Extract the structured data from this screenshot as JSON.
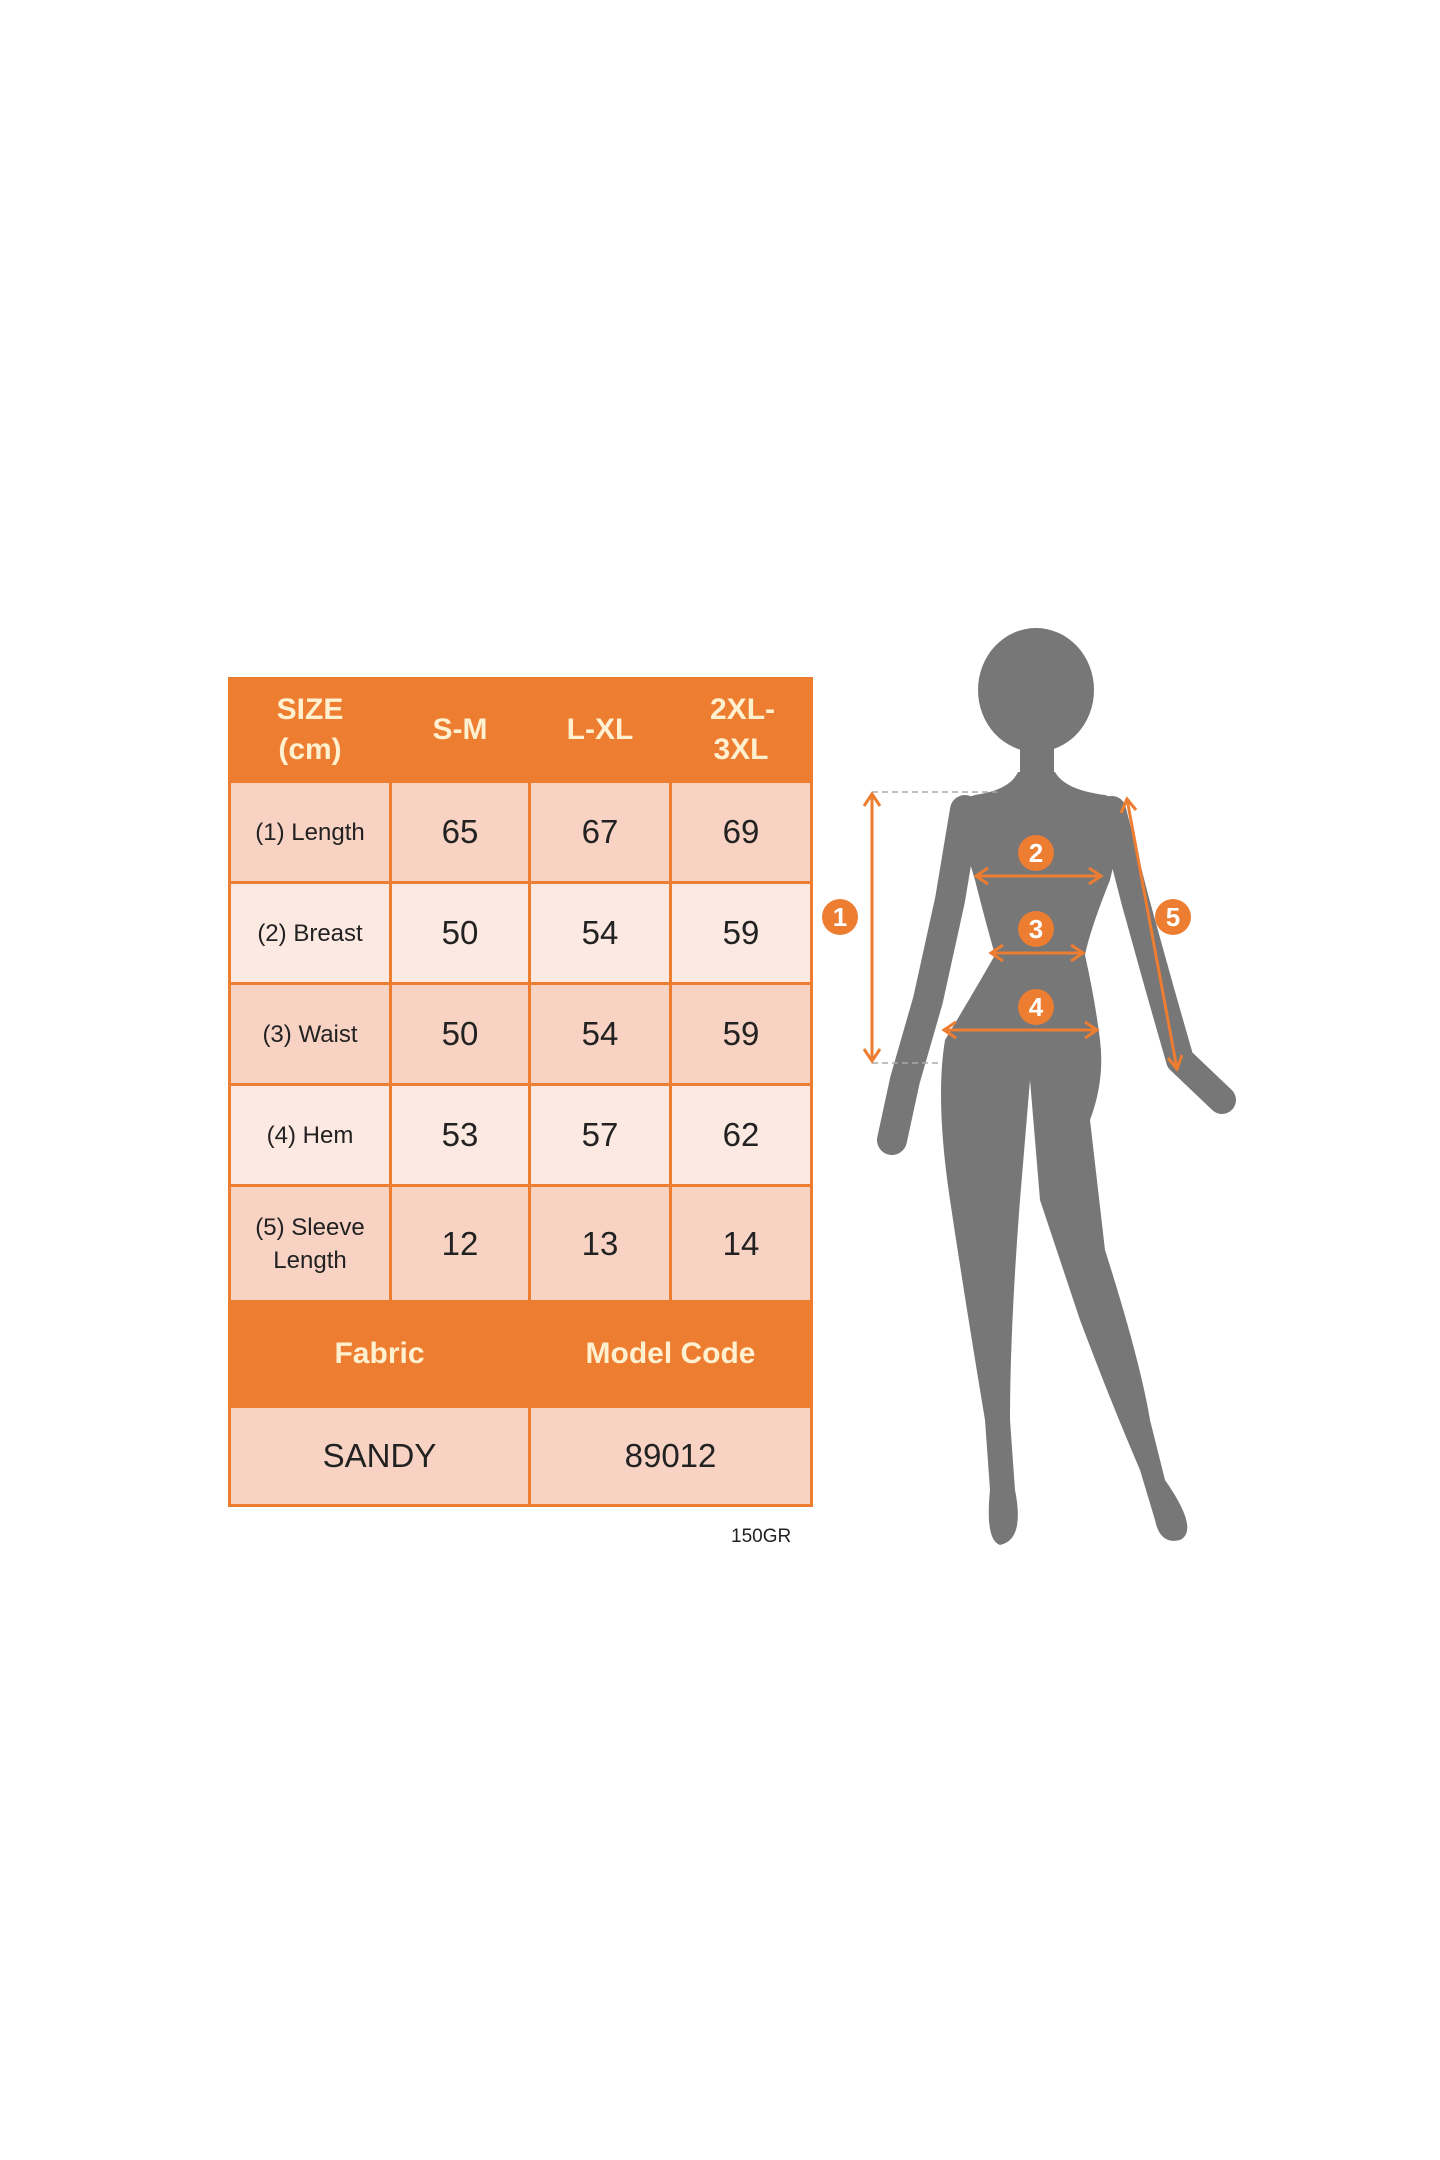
{
  "table": {
    "header": {
      "size_label": "SIZE (cm)",
      "sizes": [
        "S-M",
        "L-XL",
        "2XL-3XL"
      ]
    },
    "rows": [
      {
        "label": "(1) Length",
        "values": [
          "65",
          "67",
          "69"
        ]
      },
      {
        "label": "(2) Breast",
        "values": [
          "50",
          "54",
          "59"
        ]
      },
      {
        "label": "(3) Waist",
        "values": [
          "50",
          "54",
          "59"
        ]
      },
      {
        "label": "(4) Hem",
        "values": [
          "53",
          "57",
          "62"
        ]
      },
      {
        "label": "(5) Sleeve Length",
        "values": [
          "12",
          "13",
          "14"
        ]
      }
    ],
    "footer": {
      "fabric_label": "Fabric",
      "model_code_label": "Model Code",
      "fabric": "SANDY",
      "model_code": "89012"
    }
  },
  "weight": "150GR",
  "figure": {
    "markers": [
      "1",
      "2",
      "3",
      "4",
      "5"
    ]
  },
  "colors": {
    "accent": "#ED7D31",
    "cell_dark": "#F8D3C4",
    "cell_light": "#FCE9E2",
    "silhouette": "#777777"
  }
}
